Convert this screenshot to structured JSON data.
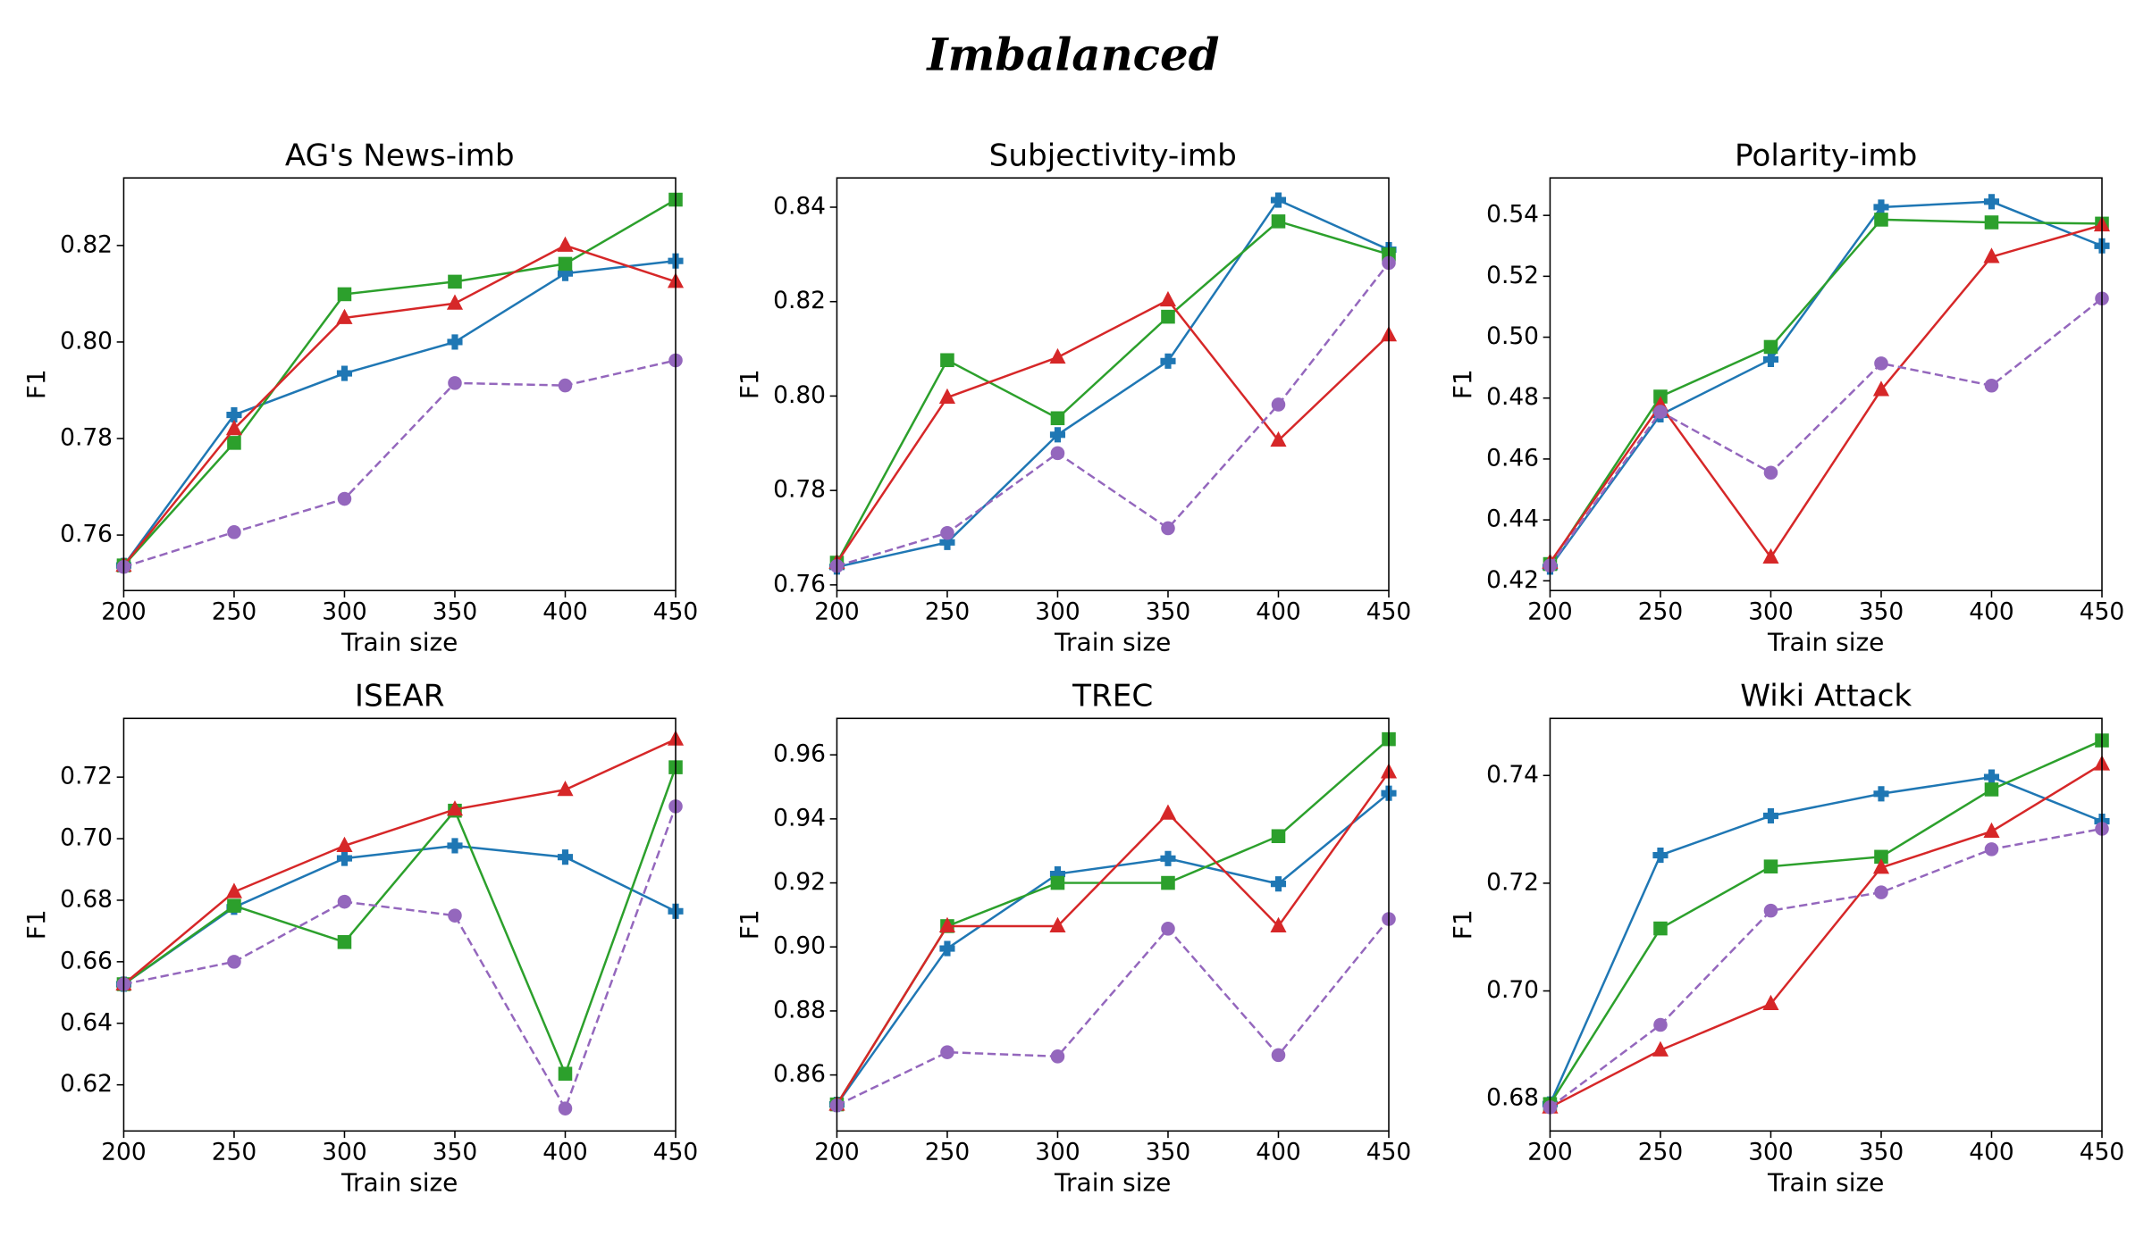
{
  "title": "Imbalanced",
  "chart_data": [
    {
      "type": "line",
      "title": "AG's News-imb",
      "xlabel": "Train size",
      "ylabel": "F1",
      "x": [
        200,
        250,
        300,
        350,
        400,
        450
      ],
      "xlim": [
        200,
        450
      ],
      "xticks": [
        200,
        250,
        300,
        350,
        400,
        450
      ],
      "ylim": [
        0.7485,
        0.834
      ],
      "yticks": [
        0.76,
        0.78,
        {
          "value": 0.8,
          "label": "0.80"
        },
        0.82
      ],
      "series": [
        {
          "color": "#1f77b4",
          "marker": "plus",
          "linestyle": "solid",
          "values": [
            0.7537,
            0.7849,
            0.7935,
            0.8,
            0.8142,
            0.8168
          ]
        },
        {
          "color": "#2ca02c",
          "marker": "square",
          "linestyle": "solid",
          "values": [
            0.7537,
            0.7791,
            0.8099,
            0.8125,
            0.8162,
            0.8295
          ]
        },
        {
          "color": "#d62728",
          "marker": "triangle",
          "linestyle": "solid",
          "values": [
            0.7537,
            0.782,
            0.805,
            0.808,
            0.82,
            0.8125
          ]
        },
        {
          "color": "#9467bd",
          "marker": "circle",
          "linestyle": "dashed",
          "values": [
            0.7534,
            0.7606,
            0.7675,
            0.7915,
            0.791,
            0.7962
          ]
        }
      ]
    },
    {
      "type": "line",
      "title": "Subjectivity-imb",
      "xlabel": "Train size",
      "ylabel": "F1",
      "x": [
        200,
        250,
        300,
        350,
        400,
        450
      ],
      "xlim": [
        200,
        450
      ],
      "xticks": [
        200,
        250,
        300,
        350,
        400,
        450
      ],
      "ylim": [
        0.7588,
        0.8462
      ],
      "yticks": [
        0.76,
        0.78,
        {
          "value": 0.8,
          "label": "0.80"
        },
        0.82,
        0.84
      ],
      "series": [
        {
          "color": "#1f77b4",
          "marker": "plus",
          "linestyle": "solid",
          "values": [
            0.7638,
            0.769,
            0.7918,
            0.8074,
            0.8415,
            0.831
          ]
        },
        {
          "color": "#2ca02c",
          "marker": "square",
          "linestyle": "solid",
          "values": [
            0.7647,
            0.8076,
            0.7953,
            0.8168,
            0.837,
            0.83
          ]
        },
        {
          "color": "#d62728",
          "marker": "triangle",
          "linestyle": "solid",
          "values": [
            0.7647,
            0.7997,
            0.8082,
            0.8203,
            0.7906,
            0.8129
          ]
        },
        {
          "color": "#9467bd",
          "marker": "circle",
          "linestyle": "dashed",
          "values": [
            0.764,
            0.771,
            0.7879,
            0.772,
            0.7982,
            0.8282
          ]
        }
      ]
    },
    {
      "type": "line",
      "title": "Polarity-imb",
      "xlabel": "Train size",
      "ylabel": "F1",
      "x": [
        200,
        250,
        300,
        350,
        400,
        450
      ],
      "xlim": [
        200,
        450
      ],
      "xticks": [
        200,
        250,
        300,
        350,
        400,
        450
      ],
      "ylim": [
        0.4168,
        0.5523
      ],
      "yticks": [
        0.42,
        0.44,
        0.46,
        0.48,
        {
          "value": 0.5,
          "label": "0.50"
        },
        0.52,
        0.54
      ],
      "series": [
        {
          "color": "#1f77b4",
          "marker": "plus",
          "linestyle": "solid",
          "values": [
            0.4245,
            0.4745,
            0.4927,
            0.5427,
            0.5445,
            0.53
          ]
        },
        {
          "color": "#2ca02c",
          "marker": "square",
          "linestyle": "solid",
          "values": [
            0.4255,
            0.4805,
            0.4968,
            0.5386,
            0.5377,
            0.5373
          ]
        },
        {
          "color": "#d62728",
          "marker": "triangle",
          "linestyle": "solid",
          "values": [
            0.426,
            0.4777,
            0.4277,
            0.4827,
            0.5264,
            0.5368
          ]
        },
        {
          "color": "#9467bd",
          "marker": "circle",
          "linestyle": "dashed",
          "values": [
            0.425,
            0.4755,
            0.4555,
            0.4914,
            0.4841,
            0.5127
          ]
        }
      ]
    },
    {
      "type": "line",
      "title": "ISEAR",
      "xlabel": "Train size",
      "ylabel": "F1",
      "x": [
        200,
        250,
        300,
        350,
        400,
        450
      ],
      "xlim": [
        200,
        450
      ],
      "xticks": [
        200,
        250,
        300,
        350,
        400,
        450
      ],
      "ylim": [
        0.605,
        0.7391
      ],
      "yticks": [
        0.62,
        0.64,
        0.66,
        0.68,
        {
          "value": 0.7,
          "label": "0.70"
        },
        0.72
      ],
      "series": [
        {
          "color": "#1f77b4",
          "marker": "plus",
          "linestyle": "solid",
          "values": [
            0.6527,
            0.6777,
            0.6936,
            0.6977,
            0.694,
            0.6764
          ]
        },
        {
          "color": "#2ca02c",
          "marker": "square",
          "linestyle": "solid",
          "values": [
            0.6527,
            0.6782,
            0.6664,
            0.7091,
            0.6236,
            0.7232
          ]
        },
        {
          "color": "#d62728",
          "marker": "triangle",
          "linestyle": "solid",
          "values": [
            0.6527,
            0.6827,
            0.6977,
            0.7095,
            0.7159,
            0.7323
          ]
        },
        {
          "color": "#9467bd",
          "marker": "circle",
          "linestyle": "dashed",
          "values": [
            0.6527,
            0.66,
            0.6795,
            0.675,
            0.6123,
            0.7105
          ]
        }
      ]
    },
    {
      "type": "line",
      "title": "TREC",
      "xlabel": "Train size",
      "ylabel": "F1",
      "x": [
        200,
        250,
        300,
        350,
        400,
        450
      ],
      "xlim": [
        200,
        450
      ],
      "xticks": [
        200,
        250,
        300,
        350,
        400,
        450
      ],
      "ylim": [
        0.8425,
        0.9714
      ],
      "yticks": [
        0.86,
        0.88,
        {
          "value": 0.9,
          "label": "0.90"
        },
        0.92,
        0.94,
        0.96
      ],
      "series": [
        {
          "color": "#1f77b4",
          "marker": "plus",
          "linestyle": "solid",
          "values": [
            0.8508,
            0.8995,
            0.9228,
            0.9276,
            0.9197,
            0.948
          ]
        },
        {
          "color": "#2ca02c",
          "marker": "square",
          "linestyle": "solid",
          "values": [
            0.8508,
            0.9065,
            0.92,
            0.92,
            0.9346,
            0.9649
          ]
        },
        {
          "color": "#d62728",
          "marker": "triangle",
          "linestyle": "solid",
          "values": [
            0.8508,
            0.9065,
            0.9065,
            0.9417,
            0.9065,
            0.9546
          ]
        },
        {
          "color": "#9467bd",
          "marker": "circle",
          "linestyle": "dashed",
          "values": [
            0.8505,
            0.8671,
            0.8658,
            0.9057,
            0.8662,
            0.9087
          ]
        }
      ]
    },
    {
      "type": "line",
      "title": "Wiki Attack",
      "xlabel": "Train size",
      "ylabel": "F1",
      "x": [
        200,
        250,
        300,
        350,
        400,
        450
      ],
      "xlim": [
        200,
        450
      ],
      "xticks": [
        200,
        250,
        300,
        350,
        400,
        450
      ],
      "ylim": [
        0.674,
        0.7506
      ],
      "yticks": [
        0.68,
        {
          "value": 0.7,
          "label": "0.70"
        },
        0.72,
        0.74
      ],
      "series": [
        {
          "color": "#1f77b4",
          "marker": "plus",
          "linestyle": "solid",
          "values": [
            0.679,
            0.7252,
            0.7325,
            0.7366,
            0.7397,
            0.7315
          ]
        },
        {
          "color": "#2ca02c",
          "marker": "square",
          "linestyle": "solid",
          "values": [
            0.679,
            0.7116,
            0.7231,
            0.7249,
            0.7374,
            0.7465
          ]
        },
        {
          "color": "#d62728",
          "marker": "triangle",
          "linestyle": "solid",
          "values": [
            0.6784,
            0.689,
            0.6976,
            0.7229,
            0.7296,
            0.7421
          ]
        },
        {
          "color": "#9467bd",
          "marker": "circle",
          "linestyle": "dashed",
          "values": [
            0.6784,
            0.6937,
            0.7149,
            0.7183,
            0.7263,
            0.7301
          ]
        }
      ]
    }
  ]
}
